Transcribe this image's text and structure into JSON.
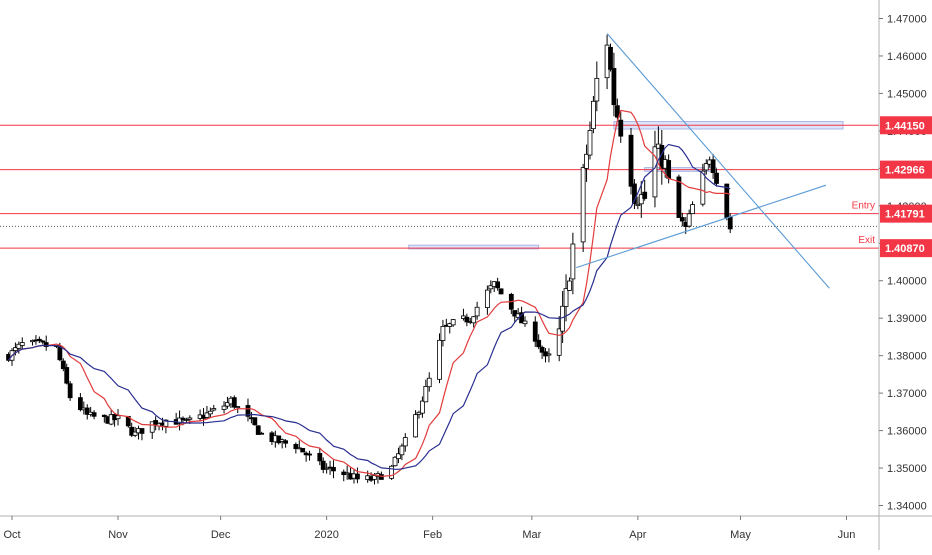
{
  "chart_data": {
    "type": "candlestick",
    "title": "",
    "xlabel": "",
    "ylabel": "",
    "ylim": [
      1.336,
      1.474
    ],
    "grid": false,
    "y_ticks": [
      "1.34000",
      "1.35000",
      "1.36000",
      "1.37000",
      "1.38000",
      "1.39000",
      "1.40000",
      "1.41000",
      "1.42000",
      "1.43000",
      "1.44000",
      "1.45000",
      "1.46000",
      "1.47000"
    ],
    "y_tick_values": [
      1.34,
      1.35,
      1.36,
      1.37,
      1.38,
      1.39,
      1.4,
      1.41,
      1.42,
      1.43,
      1.44,
      1.45,
      1.46,
      1.47
    ],
    "x_ticks": [
      {
        "label": "Oct",
        "date": "2019-10-01"
      },
      {
        "label": "Nov",
        "date": "2019-11-01"
      },
      {
        "label": "Dec",
        "date": "2019-12-01"
      },
      {
        "label": "2020",
        "date": "2020-01-01"
      },
      {
        "label": "Feb",
        "date": "2020-02-01"
      },
      {
        "label": "Mar",
        "date": "2020-03-01"
      },
      {
        "label": "Apr",
        "date": "2020-04-01"
      },
      {
        "label": "May",
        "date": "2020-05-01"
      },
      {
        "label": "Jun",
        "date": "2020-06-01"
      }
    ],
    "price_levels": [
      {
        "value": 1.4415,
        "label": "1.44150",
        "color": "#f23645"
      },
      {
        "value": 1.42966,
        "label": "1.42966",
        "color": "#f23645"
      },
      {
        "value": 1.41791,
        "label": "1.41791",
        "color": "#f23645",
        "annotation": "Entry"
      },
      {
        "value": 1.4087,
        "label": "1.40870",
        "color": "#f23645",
        "annotation": "Exit"
      }
    ],
    "current_price": 1.4145,
    "series": [
      {
        "kind": "anchors",
        "points": [
          [
            "2019-09-30",
            1.38
          ],
          [
            "2019-10-04",
            1.383
          ],
          [
            "2019-10-09",
            1.383
          ],
          [
            "2019-10-14",
            1.382
          ],
          [
            "2019-10-18",
            1.369
          ],
          [
            "2019-10-23",
            1.364
          ],
          [
            "2019-10-28",
            1.363
          ],
          [
            "2019-11-01",
            1.363
          ],
          [
            "2019-11-06",
            1.359
          ],
          [
            "2019-11-11",
            1.362
          ],
          [
            "2019-11-16",
            1.363
          ],
          [
            "2019-11-21",
            1.362
          ],
          [
            "2019-11-26",
            1.364
          ],
          [
            "2019-12-01",
            1.366
          ],
          [
            "2019-12-04",
            1.368
          ],
          [
            "2019-12-08",
            1.364
          ],
          [
            "2019-12-13",
            1.359
          ],
          [
            "2019-12-18",
            1.357
          ],
          [
            "2019-12-23",
            1.356
          ],
          [
            "2019-12-27",
            1.353
          ],
          [
            "2019-12-31",
            1.35
          ],
          [
            "2020-01-05",
            1.349
          ],
          [
            "2020-01-10",
            1.347
          ],
          [
            "2020-01-15",
            1.347
          ],
          [
            "2020-01-20",
            1.35
          ],
          [
            "2020-01-24",
            1.357
          ],
          [
            "2020-01-28",
            1.366
          ],
          [
            "2020-02-01",
            1.376
          ],
          [
            "2020-02-04",
            1.387
          ],
          [
            "2020-02-08",
            1.389
          ],
          [
            "2020-02-12",
            1.39
          ],
          [
            "2020-02-16",
            1.396
          ],
          [
            "2020-02-19",
            1.399
          ],
          [
            "2020-02-23",
            1.394
          ],
          [
            "2020-02-27",
            1.389
          ],
          [
            "2020-03-02",
            1.385
          ],
          [
            "2020-03-05",
            1.379
          ],
          [
            "2020-03-08",
            1.381
          ],
          [
            "2020-03-11",
            1.396
          ],
          [
            "2020-03-14",
            1.416
          ],
          [
            "2020-03-18",
            1.44
          ],
          [
            "2020-03-21",
            1.46
          ],
          [
            "2020-03-23",
            1.464
          ],
          [
            "2020-03-25",
            1.448
          ],
          [
            "2020-03-28",
            1.437
          ],
          [
            "2020-03-31",
            1.423
          ],
          [
            "2020-04-03",
            1.422
          ],
          [
            "2020-04-06",
            1.435
          ],
          [
            "2020-04-09",
            1.431
          ],
          [
            "2020-04-12",
            1.418
          ],
          [
            "2020-04-15",
            1.414
          ],
          [
            "2020-04-19",
            1.426
          ],
          [
            "2020-04-22",
            1.433
          ],
          [
            "2020-04-25",
            1.424
          ],
          [
            "2020-04-28",
            1.414
          ]
        ]
      }
    ],
    "moving_averages": [
      {
        "color": "#e23b3b",
        "period": 10
      },
      {
        "color": "#2a2f8f",
        "period": 20
      }
    ],
    "trend_lines": [
      {
        "from": [
          "2020-03-23",
          1.466
        ],
        "to": [
          "2020-05-27",
          1.398
        ],
        "color": "#5b9bd5"
      },
      {
        "from": [
          "2020-03-14",
          1.4035
        ],
        "to": [
          "2020-05-26",
          1.4255
        ],
        "color": "#5b9bd5"
      }
    ],
    "zones": [
      {
        "from": [
          "2020-01-25",
          1.4095
        ],
        "to": [
          "2020-03-03",
          1.4085
        ],
        "color": "#aab7e8"
      },
      {
        "from": [
          "2020-03-25",
          1.4425
        ],
        "to": [
          "2020-05-31",
          1.4405
        ],
        "color": "#aab7e8"
      },
      {
        "from": [
          "2020-04-03",
          1.4302
        ],
        "to": [
          "2020-04-24",
          1.4292
        ],
        "color": "#aab7e8"
      }
    ],
    "annotations": [
      "Entry",
      "Exit"
    ]
  }
}
